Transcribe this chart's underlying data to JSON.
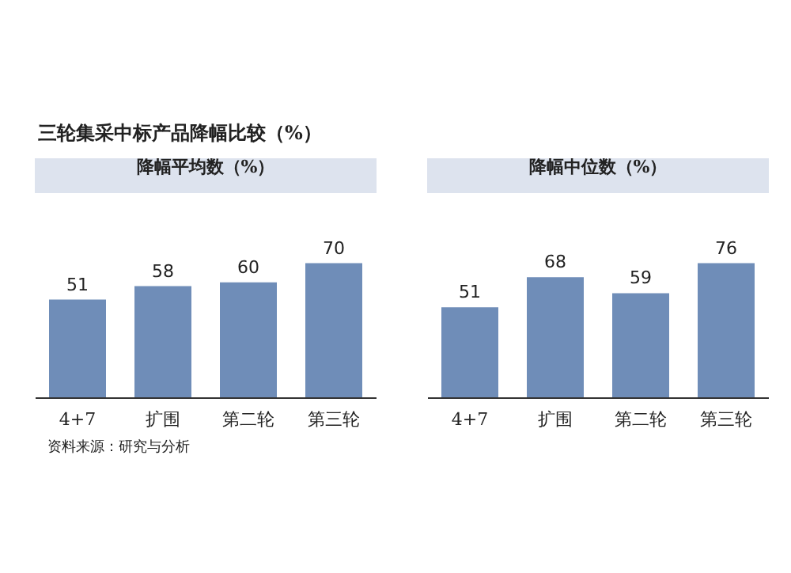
{
  "chart_data": [
    {
      "type": "bar",
      "title": "降幅平均数（%）",
      "categories": [
        "4+7",
        "扩围",
        "第二轮",
        "第三轮"
      ],
      "values": [
        51,
        58,
        60,
        70
      ],
      "color": "#6f8db8",
      "data_labels": true,
      "annotations": [
        "三轮集采中标产品降幅比较（%）",
        "资料来源：研究与分析"
      ]
    },
    {
      "type": "bar",
      "title": "降幅中位数（%）",
      "categories": [
        "4+7",
        "扩围",
        "第二轮",
        "第三轮"
      ],
      "values": [
        51,
        68,
        59,
        76
      ],
      "color": "#6f8db8",
      "data_labels": true
    }
  ]
}
